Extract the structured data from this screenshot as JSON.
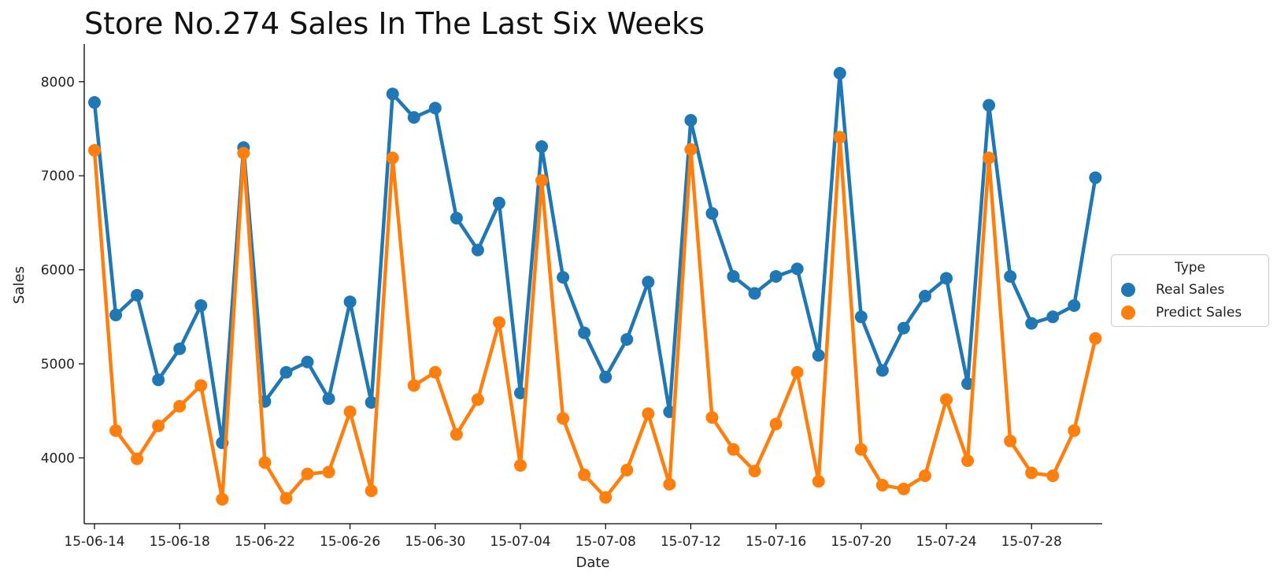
{
  "chart_data": {
    "type": "line",
    "title": "Store No.274 Sales In The Last Six Weeks",
    "xlabel": "Date",
    "ylabel": "Sales",
    "ylim": [
      3300,
      8400
    ],
    "yticks": [
      4000,
      5000,
      6000,
      7000,
      8000
    ],
    "x": [
      "15-06-14",
      "15-06-15",
      "15-06-16",
      "15-06-17",
      "15-06-18",
      "15-06-19",
      "15-06-20",
      "15-06-21",
      "15-06-22",
      "15-06-23",
      "15-06-24",
      "15-06-25",
      "15-06-26",
      "15-06-27",
      "15-06-28",
      "15-06-29",
      "15-06-30",
      "15-07-01",
      "15-07-02",
      "15-07-03",
      "15-07-04",
      "15-07-05",
      "15-07-06",
      "15-07-07",
      "15-07-08",
      "15-07-09",
      "15-07-10",
      "15-07-11",
      "15-07-12",
      "15-07-13",
      "15-07-14",
      "15-07-15",
      "15-07-16",
      "15-07-17",
      "15-07-18",
      "15-07-19",
      "15-07-20",
      "15-07-21",
      "15-07-22",
      "15-07-23",
      "15-07-24",
      "15-07-25",
      "15-07-26",
      "15-07-27",
      "15-07-28",
      "15-07-29",
      "15-07-30",
      "15-07-31"
    ],
    "xtick_labels": [
      "15-06-14",
      "15-06-18",
      "15-06-22",
      "15-06-26",
      "15-06-30",
      "15-07-04",
      "15-07-08",
      "15-07-12",
      "15-07-16",
      "15-07-20",
      "15-07-24",
      "15-07-28"
    ],
    "grid": false,
    "legend_title": "Type",
    "legend_placement": "center-right outside",
    "series": [
      {
        "name": "Real Sales",
        "color": "#1f77b4",
        "values": [
          7780,
          5520,
          5730,
          4830,
          5160,
          5620,
          4160,
          7300,
          4600,
          4910,
          5020,
          4630,
          5660,
          4590,
          7870,
          7620,
          7720,
          6550,
          6210,
          6710,
          4690,
          7310,
          5920,
          5330,
          4860,
          5260,
          5870,
          4490,
          7590,
          6600,
          5930,
          5750,
          5930,
          6010,
          5090,
          8090,
          5500,
          4930,
          5380,
          5720,
          5910,
          4790,
          7750,
          5930,
          5430,
          5500,
          5620,
          6980
        ]
      },
      {
        "name": "Predict Sales",
        "color": "#ff7f0e",
        "values": [
          7270,
          4290,
          3990,
          4340,
          4550,
          4770,
          3560,
          7240,
          3950,
          3570,
          3830,
          3850,
          4490,
          3650,
          7190,
          4770,
          4910,
          4250,
          4620,
          5440,
          3920,
          6950,
          4420,
          3820,
          3580,
          3870,
          4470,
          3720,
          7280,
          4430,
          4090,
          3860,
          4360,
          4910,
          3750,
          7410,
          4090,
          3710,
          3670,
          3810,
          4620,
          3970,
          7190,
          4180,
          3840,
          3810,
          4290,
          5270
        ]
      }
    ]
  }
}
